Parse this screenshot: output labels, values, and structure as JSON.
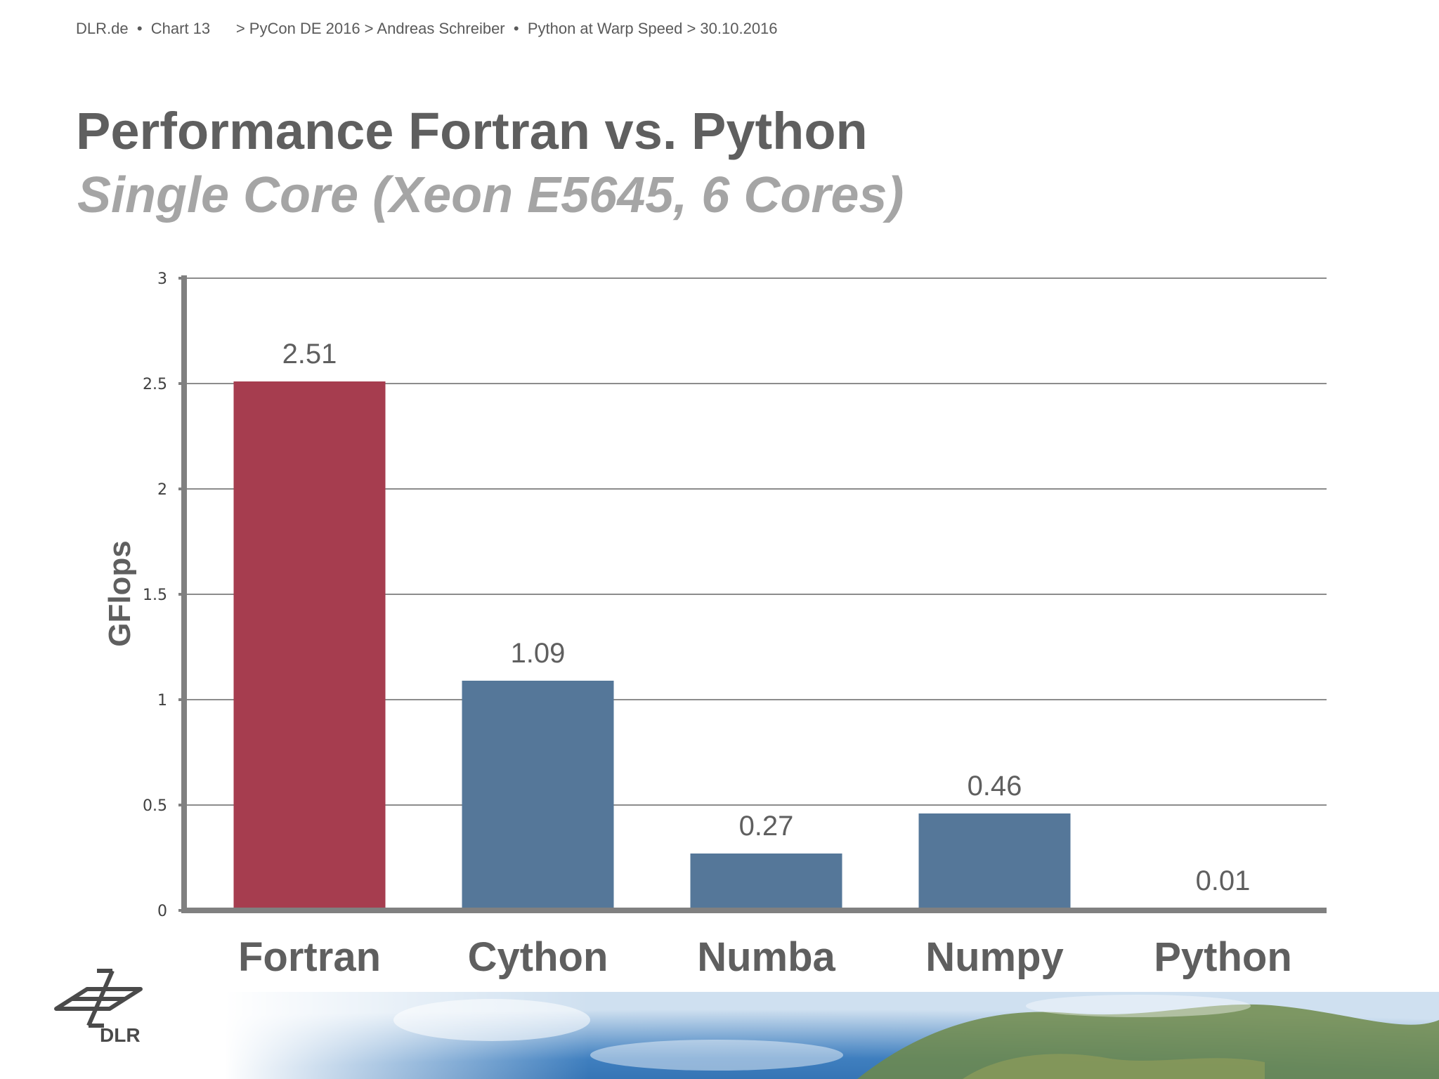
{
  "header": {
    "site": "DLR.de",
    "sep1": "•",
    "chart_label": "Chart 13",
    "path": "> PyCon DE 2016 > Andreas Schreiber",
    "sep2": "•",
    "talk": "Python at Warp Speed > 30.10.2016"
  },
  "logo": {
    "text": "DLR",
    "icon": "dlr-logo-icon"
  },
  "background_image": {
    "icon": "earth-from-space-image"
  },
  "colors": {
    "fortran_bar": "#A63D4F",
    "other_bars": "#557799",
    "axis": "#808080",
    "gridline": "#8c8c8c",
    "text_dark": "#5f5f5f",
    "subtitle": "#a5a5a5"
  },
  "chart_data": {
    "type": "bar",
    "title": "Performance Fortran vs. Python",
    "subtitle": "Single Core (Xeon E5645, 6 Cores)",
    "ylabel": "GFlops",
    "xlabel": "",
    "categories": [
      "Fortran",
      "Cython",
      "Numba",
      "Numpy",
      "Python"
    ],
    "values": [
      2.51,
      1.09,
      0.27,
      0.46,
      0.01
    ],
    "value_labels": [
      "2.51",
      "1.09",
      "0.27",
      "0.46",
      "0.01"
    ],
    "ylim": [
      0,
      3
    ],
    "yticks": [
      0,
      0.5,
      1,
      1.5,
      2,
      2.5,
      3
    ],
    "ytick_labels": [
      "0",
      "0.5",
      "1",
      "1.5",
      "2",
      "2.5",
      "3"
    ],
    "grid": true,
    "legend": "none"
  }
}
